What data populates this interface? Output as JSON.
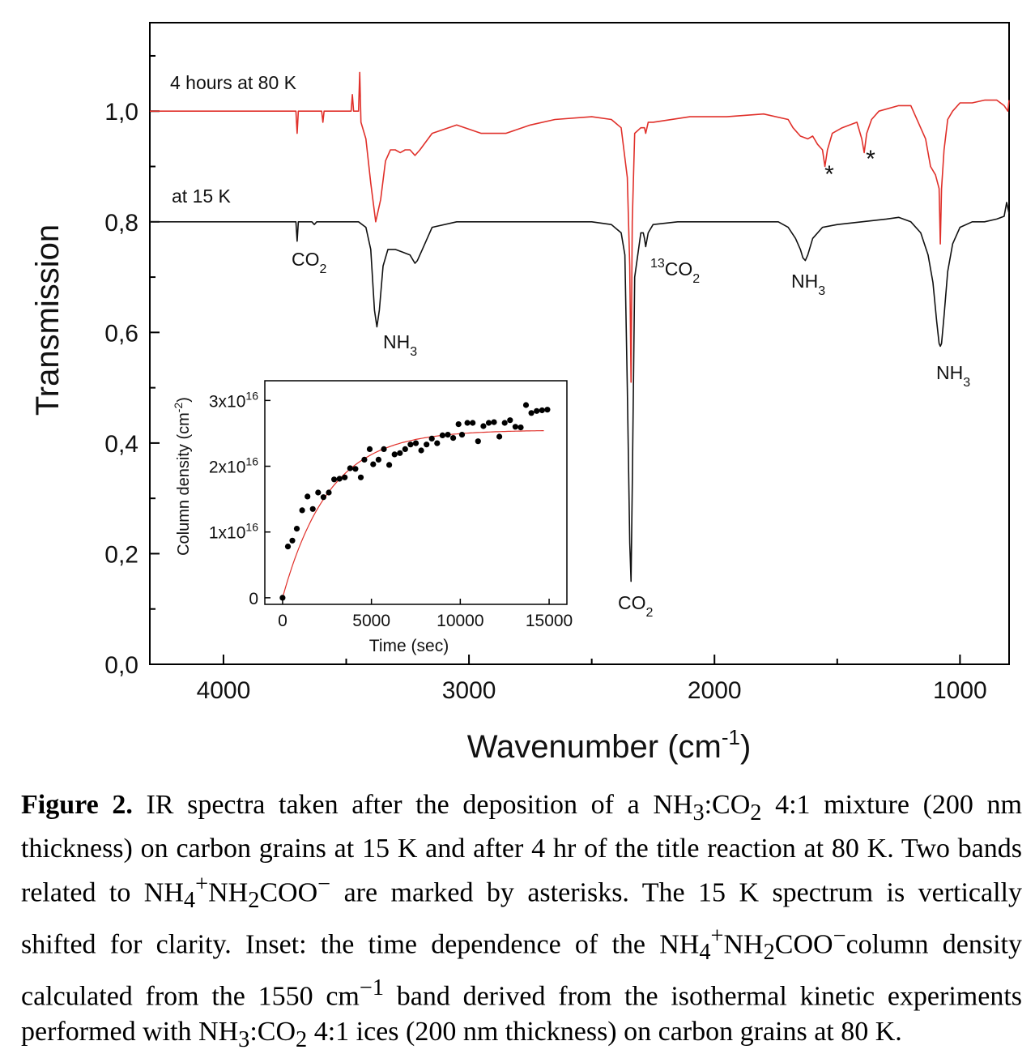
{
  "chart_data": [
    {
      "type": "line",
      "xlabel": "Wavenumber (cm",
      "xlabel_sup": "-1",
      "xlabel_end": ")",
      "ylabel": "Transmission",
      "xlim": [
        4300,
        800
      ],
      "ylim": [
        0.0,
        1.16
      ],
      "x_reversed": true,
      "x_ticks": [
        4000,
        3000,
        2000,
        1000
      ],
      "x_tick_labels": [
        "4000",
        "3000",
        "2000",
        "1000"
      ],
      "y_ticks": [
        0.0,
        0.2,
        0.4,
        0.6,
        0.8,
        1.0
      ],
      "y_tick_labels": [
        "0,0",
        "0,2",
        "0,4",
        "0,6",
        "0,8",
        "1,0"
      ],
      "series": [
        {
          "name": "4 hours at 80 K",
          "color": "#e0302a",
          "baseline": 1.0,
          "x": [
            4300,
            3800,
            3705,
            3700,
            3695,
            3600,
            3595,
            3590,
            3480,
            3475,
            3470,
            3450,
            3445,
            3440,
            3420,
            3400,
            3380,
            3360,
            3340,
            3320,
            3300,
            3280,
            3260,
            3240,
            3220,
            3200,
            3150,
            3050,
            2950,
            2850,
            2750,
            2650,
            2500,
            2420,
            2380,
            2355,
            2345,
            2340,
            2335,
            2325,
            2300,
            2285,
            2280,
            2270,
            2250,
            2100,
            1950,
            1800,
            1700,
            1680,
            1650,
            1620,
            1600,
            1580,
            1560,
            1550,
            1540,
            1520,
            1480,
            1420,
            1400,
            1390,
            1380,
            1360,
            1330,
            1250,
            1200,
            1170,
            1140,
            1120,
            1100,
            1085,
            1080,
            1075,
            1065,
            1050,
            1030,
            1000,
            950,
            900,
            850,
            820,
            805,
            800
          ],
          "y": [
            1.0,
            1.0,
            1.0,
            0.96,
            1.0,
            1.0,
            0.98,
            1.0,
            1.0,
            1.03,
            1.0,
            1.0,
            1.07,
            0.98,
            0.95,
            0.87,
            0.8,
            0.84,
            0.91,
            0.93,
            0.93,
            0.925,
            0.93,
            0.93,
            0.92,
            0.93,
            0.96,
            0.975,
            0.96,
            0.96,
            0.975,
            0.985,
            0.99,
            0.985,
            0.97,
            0.88,
            0.72,
            0.51,
            0.8,
            0.96,
            0.97,
            0.97,
            0.96,
            0.98,
            0.98,
            0.99,
            0.99,
            0.995,
            0.985,
            0.97,
            0.955,
            0.95,
            0.955,
            0.94,
            0.93,
            0.9,
            0.93,
            0.96,
            0.97,
            0.98,
            0.95,
            0.925,
            0.96,
            0.985,
            1.0,
            1.01,
            1.01,
            0.98,
            0.95,
            0.9,
            0.885,
            0.86,
            0.76,
            0.86,
            0.93,
            0.985,
            1.0,
            1.015,
            1.015,
            1.02,
            1.02,
            1.01,
            1.0,
            1.02
          ]
        },
        {
          "name": "at 15 K",
          "color": "#111111",
          "baseline": 0.8,
          "x": [
            4300,
            3750,
            3705,
            3700,
            3695,
            3640,
            3630,
            3620,
            3500,
            3450,
            3420,
            3400,
            3385,
            3375,
            3365,
            3350,
            3330,
            3300,
            3270,
            3240,
            3220,
            3210,
            3190,
            3150,
            3050,
            2900,
            2700,
            2500,
            2420,
            2380,
            2365,
            2355,
            2345,
            2340,
            2335,
            2325,
            2300,
            2290,
            2285,
            2280,
            2270,
            2250,
            2150,
            1950,
            1800,
            1740,
            1700,
            1670,
            1650,
            1640,
            1630,
            1620,
            1600,
            1560,
            1500,
            1400,
            1300,
            1250,
            1200,
            1160,
            1130,
            1110,
            1095,
            1085,
            1080,
            1075,
            1065,
            1050,
            1030,
            1000,
            950,
            900,
            850,
            820,
            810,
            800
          ],
          "y": [
            0.8,
            0.8,
            0.8,
            0.765,
            0.8,
            0.8,
            0.795,
            0.8,
            0.8,
            0.8,
            0.79,
            0.75,
            0.64,
            0.61,
            0.64,
            0.72,
            0.75,
            0.75,
            0.745,
            0.74,
            0.725,
            0.73,
            0.75,
            0.79,
            0.8,
            0.8,
            0.8,
            0.8,
            0.795,
            0.78,
            0.74,
            0.5,
            0.22,
            0.15,
            0.32,
            0.7,
            0.78,
            0.78,
            0.77,
            0.755,
            0.78,
            0.795,
            0.8,
            0.8,
            0.8,
            0.8,
            0.79,
            0.77,
            0.75,
            0.735,
            0.73,
            0.74,
            0.77,
            0.79,
            0.795,
            0.8,
            0.805,
            0.808,
            0.8,
            0.78,
            0.74,
            0.69,
            0.62,
            0.58,
            0.575,
            0.58,
            0.63,
            0.71,
            0.76,
            0.79,
            0.8,
            0.8,
            0.805,
            0.81,
            0.835,
            0.815
          ]
        }
      ],
      "curve_labels": [
        "4 hours at 80 K",
        "at 15 K"
      ],
      "band_labels": [
        {
          "text": "CO",
          "sub": "2",
          "pre": ""
        },
        {
          "text": "NH",
          "sub": "3",
          "pre": ""
        },
        {
          "text": "CO",
          "sub": "2",
          "pre": "13"
        },
        {
          "text": "CO",
          "sub": "2",
          "pre": ""
        },
        {
          "text": "NH",
          "sub": "3",
          "pre": ""
        },
        {
          "text": "NH",
          "sub": "3",
          "pre": ""
        }
      ],
      "asterisks": [
        "*",
        "*"
      ]
    },
    {
      "type": "scatter",
      "xlabel": "Time (sec)",
      "ylabel": "Column density (cm",
      "ylabel_sup": "-2",
      "ylabel_end": ")",
      "xlim": [
        -1000,
        16000
      ],
      "ylim": [
        -1000000000000000.0,
        3.3e+16
      ],
      "x_ticks": [
        0,
        5000,
        10000,
        15000
      ],
      "x_tick_labels": [
        "0",
        "5000",
        "10000",
        "15000"
      ],
      "y_ticks": [
        0,
        1e+16,
        2e+16,
        3e+16
      ],
      "y_tick_labels": [
        {
          "main": "0",
          "sup": ""
        },
        {
          "main": "1x10",
          "sup": "16"
        },
        {
          "main": "2x10",
          "sup": "16"
        },
        {
          "main": "3x10",
          "sup": "16"
        }
      ],
      "points_x": [
        0,
        300,
        550,
        800,
        1100,
        1400,
        1700,
        2000,
        2300,
        2600,
        2900,
        3200,
        3500,
        3800,
        4100,
        4400,
        4600,
        4900,
        5100,
        5400,
        5700,
        6000,
        6300,
        6600,
        6900,
        7200,
        7500,
        7800,
        8100,
        8400,
        8700,
        9000,
        9300,
        9600,
        9900,
        10100,
        10400,
        10700,
        11000,
        11300,
        11600,
        11900,
        12200,
        12500,
        12800,
        13100,
        13400,
        13700,
        14000,
        14300,
        14600,
        14900
      ],
      "points_y": [
        0.0,
        7800000000000000.0,
        8700000000000000.0,
        1.05e+16,
        1.33e+16,
        1.54e+16,
        1.35e+16,
        1.6e+16,
        1.53e+16,
        1.6e+16,
        1.8e+16,
        1.81e+16,
        1.83e+16,
        1.97e+16,
        1.96e+16,
        1.83e+16,
        2.1e+16,
        2.26e+16,
        2.03e+16,
        2.1e+16,
        2.26e+16,
        2.02e+16,
        2.18e+16,
        2.2e+16,
        2.26e+16,
        2.33e+16,
        2.35e+16,
        2.24e+16,
        2.33e+16,
        2.42e+16,
        2.35e+16,
        2.47e+16,
        2.48e+16,
        2.43e+16,
        2.64e+16,
        2.48e+16,
        2.66e+16,
        2.66e+16,
        2.38e+16,
        2.61e+16,
        2.66e+16,
        2.67e+16,
        2.45e+16,
        2.66e+16,
        2.7e+16,
        2.6e+16,
        2.59e+16,
        2.93e+16,
        2.81e+16,
        2.84e+16,
        2.85e+16,
        2.86e+16
      ],
      "fit": {
        "color": "#e0302a",
        "a": 2.55e+16,
        "tau": 2600,
        "x_end": 14700
      }
    }
  ],
  "caption": {
    "label": "Figure 2.",
    "text_1": " IR spectra taken after the deposition of a NH",
    "sub_1": "3",
    "text_2": ":CO",
    "sub_2": "2",
    "text_3": " 4:1 mixture (200 nm thickness) on carbon grains at 15 K and after 4 hr of the title reaction at 80 K. Two bands related to NH",
    "sub_3": "4",
    "sup_3": "+",
    "text_4": "NH",
    "sub_4": "2",
    "text_5": "COO",
    "sup_5": "−",
    "text_6": " are marked by asterisks. The 15 K spectrum is vertically shifted for clarity. Inset: the time dependence of the NH",
    "sub_6": "4",
    "sup_6": "+",
    "text_7": "NH",
    "sub_7": "2",
    "text_8": "COO",
    "sup_8": "−",
    "text_9": "column density calculated from the 1550 cm",
    "sup_9": "−1",
    "text_10": " band derived from the isothermal kinetic experiments performed with NH",
    "sub_10": "3",
    "text_11": ":CO",
    "sub_11": "2",
    "text_12": " 4:1 ices (200 nm thickness) on carbon grains at 80 K."
  }
}
